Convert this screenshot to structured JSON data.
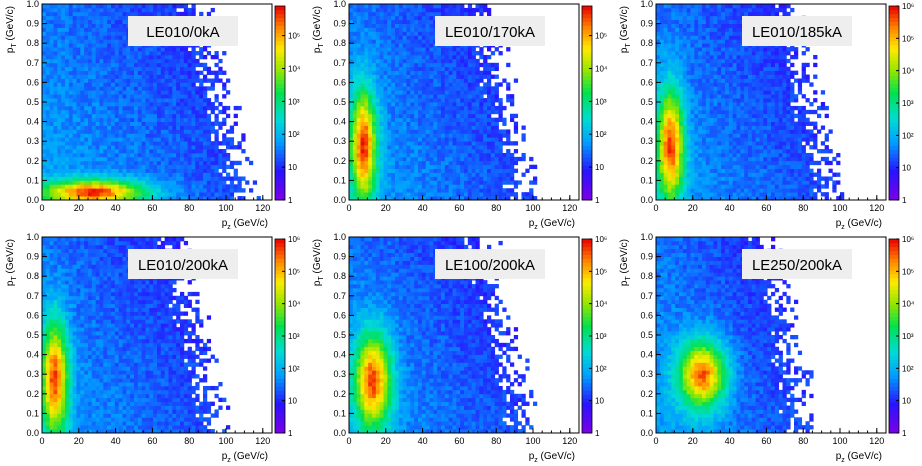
{
  "chart_data": [
    {
      "type": "heatmap",
      "label": "LE010/0kA",
      "xlabel": "p",
      "xlabel_sub": "z",
      "xlabel_unit": " (GeV/c)",
      "ylabel": "p",
      "ylabel_sub": "T",
      "ylabel_unit": " (GeV/c)",
      "xlim": [
        0,
        125
      ],
      "ylim": [
        0.0,
        1.0
      ],
      "x_ticks": [
        "0",
        "20",
        "40",
        "60",
        "80",
        "100",
        "120"
      ],
      "y_ticks": [
        "0.0",
        "0.1",
        "0.2",
        "0.3",
        "0.4",
        "0.5",
        "0.6",
        "0.7",
        "0.8",
        "0.9",
        "1.0"
      ],
      "z_log": true,
      "z_max_exp": 5.9,
      "z_ticks": [
        "1",
        "10",
        "10²",
        "10³",
        "10⁴",
        "10⁵"
      ],
      "z_ticks_exp": [
        0,
        1,
        2,
        3,
        4,
        5
      ],
      "core": {
        "x": 28,
        "y": 0.04,
        "sx": 20,
        "sy": 0.045,
        "x_extent": 110
      }
    },
    {
      "type": "heatmap",
      "label": "LE010/170kA",
      "xlabel": "p",
      "xlabel_sub": "z",
      "xlabel_unit": " (GeV/c)",
      "ylabel": "p",
      "ylabel_sub": "T",
      "ylabel_unit": " (GeV/c)",
      "xlim": [
        0,
        125
      ],
      "ylim": [
        0.0,
        1.0
      ],
      "x_ticks": [
        "0",
        "20",
        "40",
        "60",
        "80",
        "100",
        "120"
      ],
      "y_ticks": [
        "0.0",
        "0.1",
        "0.2",
        "0.3",
        "0.4",
        "0.5",
        "0.6",
        "0.7",
        "0.8",
        "0.9",
        "1.0"
      ],
      "z_log": true,
      "z_max_exp": 5.9,
      "z_ticks": [
        "1",
        "10",
        "10²",
        "10³",
        "10⁴",
        "10⁵"
      ],
      "z_ticks_exp": [
        0,
        1,
        2,
        3,
        4,
        5
      ],
      "core": {
        "x": 8,
        "y": 0.28,
        "sx": 5,
        "sy": 0.2,
        "x_extent": 95
      }
    },
    {
      "type": "heatmap",
      "label": "LE010/185kA",
      "xlabel": "p",
      "xlabel_sub": "z",
      "xlabel_unit": " (GeV/c)",
      "ylabel": "p",
      "ylabel_sub": "T",
      "ylabel_unit": " (GeV/c)",
      "xlim": [
        0,
        125
      ],
      "ylim": [
        0.0,
        1.0
      ],
      "x_ticks": [
        "0",
        "20",
        "40",
        "60",
        "80",
        "100",
        "120"
      ],
      "y_ticks": [
        "0.0",
        "0.1",
        "0.2",
        "0.3",
        "0.4",
        "0.5",
        "0.6",
        "0.7",
        "0.8",
        "0.9",
        "1.0"
      ],
      "z_log": true,
      "z_max_exp": 6.0,
      "z_ticks": [
        "1",
        "10",
        "10²",
        "10³",
        "10⁴",
        "10⁵",
        "10⁶"
      ],
      "z_ticks_exp": [
        0,
        1,
        2,
        3,
        4,
        5,
        6
      ],
      "core": {
        "x": 8,
        "y": 0.28,
        "sx": 5,
        "sy": 0.2,
        "x_extent": 95
      }
    },
    {
      "type": "heatmap",
      "label": "LE010/200kA",
      "xlabel": "p",
      "xlabel_sub": "z",
      "xlabel_unit": " (GeV/c)",
      "ylabel": "p",
      "ylabel_sub": "T",
      "ylabel_unit": " (GeV/c)",
      "xlim": [
        0,
        125
      ],
      "ylim": [
        0.0,
        1.0
      ],
      "x_ticks": [
        "0",
        "20",
        "40",
        "60",
        "80",
        "100",
        "120"
      ],
      "y_ticks": [
        "0.0",
        "0.1",
        "0.2",
        "0.3",
        "0.4",
        "0.5",
        "0.6",
        "0.7",
        "0.8",
        "0.9",
        "1.0"
      ],
      "z_log": true,
      "z_max_exp": 6.0,
      "z_ticks": [
        "1",
        "10",
        "10²",
        "10³",
        "10⁴",
        "10⁵",
        "10⁶"
      ],
      "z_ticks_exp": [
        0,
        1,
        2,
        3,
        4,
        5,
        6
      ],
      "core": {
        "x": 7,
        "y": 0.28,
        "sx": 5,
        "sy": 0.2,
        "x_extent": 95
      }
    },
    {
      "type": "heatmap",
      "label": "LE100/200kA",
      "xlabel": "p",
      "xlabel_sub": "z",
      "xlabel_unit": " (GeV/c)",
      "ylabel": "p",
      "ylabel_sub": "T",
      "ylabel_unit": " (GeV/c)",
      "xlim": [
        0,
        125
      ],
      "ylim": [
        0.0,
        1.0
      ],
      "x_ticks": [
        "0",
        "20",
        "40",
        "60",
        "80",
        "100",
        "120"
      ],
      "y_ticks": [
        "0.0",
        "0.1",
        "0.2",
        "0.3",
        "0.4",
        "0.5",
        "0.6",
        "0.7",
        "0.8",
        "0.9",
        "1.0"
      ],
      "z_log": true,
      "z_max_exp": 6.0,
      "z_ticks": [
        "1",
        "10",
        "10²",
        "10³",
        "10⁴",
        "10⁵",
        "10⁶"
      ],
      "z_ticks_exp": [
        0,
        1,
        2,
        3,
        4,
        5,
        6
      ],
      "core": {
        "x": 13,
        "y": 0.27,
        "sx": 7,
        "sy": 0.17,
        "x_extent": 95
      }
    },
    {
      "type": "heatmap",
      "label": "LE250/200kA",
      "xlabel": "p",
      "xlabel_sub": "z",
      "xlabel_unit": " (GeV/c)",
      "ylabel": "p",
      "ylabel_sub": "T",
      "ylabel_unit": " (GeV/c)",
      "xlim": [
        0,
        125
      ],
      "ylim": [
        0.0,
        1.0
      ],
      "x_ticks": [
        "0",
        "20",
        "40",
        "60",
        "80",
        "100",
        "120"
      ],
      "y_ticks": [
        "0.0",
        "0.1",
        "0.2",
        "0.3",
        "0.4",
        "0.5",
        "0.6",
        "0.7",
        "0.8",
        "0.9",
        "1.0"
      ],
      "z_log": true,
      "z_max_exp": 6.0,
      "z_ticks": [
        "1",
        "10",
        "10²",
        "10³",
        "10⁴",
        "10⁵",
        "10⁶"
      ],
      "z_ticks_exp": [
        0,
        1,
        2,
        3,
        4,
        5,
        6
      ],
      "core": {
        "x": 25,
        "y": 0.3,
        "sx": 9,
        "sy": 0.12,
        "x_extent": 80
      }
    }
  ]
}
